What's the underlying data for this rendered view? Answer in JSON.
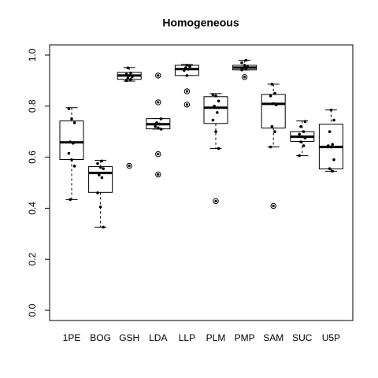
{
  "chart_data": {
    "type": "box",
    "title": "Homogeneous",
    "categories": [
      "1PE",
      "BOG",
      "GSH",
      "LDA",
      "LLP",
      "PLM",
      "PMP",
      "SAM",
      "SUC",
      "U5P"
    ],
    "boxes": [
      {
        "min": 0.434,
        "q1": 0.591,
        "median": 0.658,
        "q3": 0.742,
        "max": 0.794,
        "outliers": [],
        "points": [
          0.79,
          0.75,
          0.735,
          0.66,
          0.655,
          0.615,
          0.59,
          0.565,
          0.434
        ]
      },
      {
        "min": 0.326,
        "q1": 0.462,
        "median": 0.538,
        "q3": 0.563,
        "max": 0.588,
        "outliers": [],
        "points": [
          0.585,
          0.575,
          0.56,
          0.555,
          0.53,
          0.52,
          0.46,
          0.405,
          0.326
        ]
      },
      {
        "min": 0.898,
        "q1": 0.905,
        "median": 0.92,
        "q3": 0.932,
        "max": 0.951,
        "outliers": [
          0.566
        ],
        "points": [
          0.95,
          0.93,
          0.925,
          0.92,
          0.915,
          0.91,
          0.905,
          0.9
        ]
      },
      {
        "min": 0.71,
        "q1": 0.711,
        "median": 0.729,
        "q3": 0.751,
        "max": 0.751,
        "outliers": [
          0.92,
          0.815,
          0.612,
          0.532
        ],
        "points": [
          0.75,
          0.735,
          0.73,
          0.72,
          0.715,
          0.71
        ]
      },
      {
        "min": 0.92,
        "q1": 0.92,
        "median": 0.945,
        "q3": 0.96,
        "max": 0.963,
        "outliers": [
          0.858,
          0.806
        ],
        "points": [
          0.96,
          0.955,
          0.95,
          0.945,
          0.94,
          0.92
        ]
      },
      {
        "min": 0.634,
        "q1": 0.732,
        "median": 0.794,
        "q3": 0.837,
        "max": 0.849,
        "outliers": [
          0.428
        ],
        "points": [
          0.845,
          0.84,
          0.82,
          0.8,
          0.775,
          0.745,
          0.7,
          0.634
        ]
      },
      {
        "min": 0.942,
        "q1": 0.942,
        "median": 0.951,
        "q3": 0.96,
        "max": 0.98,
        "outliers": [
          0.914
        ],
        "points": [
          0.98,
          0.97,
          0.96,
          0.955,
          0.95,
          0.945,
          0.942
        ]
      },
      {
        "min": 0.64,
        "q1": 0.714,
        "median": 0.809,
        "q3": 0.846,
        "max": 0.886,
        "outliers": [
          0.409
        ],
        "points": [
          0.886,
          0.85,
          0.84,
          0.81,
          0.805,
          0.72,
          0.7,
          0.64
        ]
      },
      {
        "min": 0.606,
        "q1": 0.662,
        "median": 0.68,
        "q3": 0.7,
        "max": 0.742,
        "outliers": [],
        "points": [
          0.74,
          0.72,
          0.7,
          0.69,
          0.68,
          0.675,
          0.66,
          0.645,
          0.606
        ]
      },
      {
        "min": 0.545,
        "q1": 0.554,
        "median": 0.64,
        "q3": 0.729,
        "max": 0.785,
        "outliers": [],
        "points": [
          0.785,
          0.745,
          0.7,
          0.65,
          0.645,
          0.64,
          0.59,
          0.555,
          0.545
        ]
      }
    ],
    "ylim": [
      -0.04,
      1.04
    ],
    "yticks": [
      {
        "value": 0,
        "label": "0.0"
      },
      0.2,
      0.4,
      0.6,
      0.8,
      {
        "value": 1,
        "label": "1.0"
      }
    ]
  }
}
